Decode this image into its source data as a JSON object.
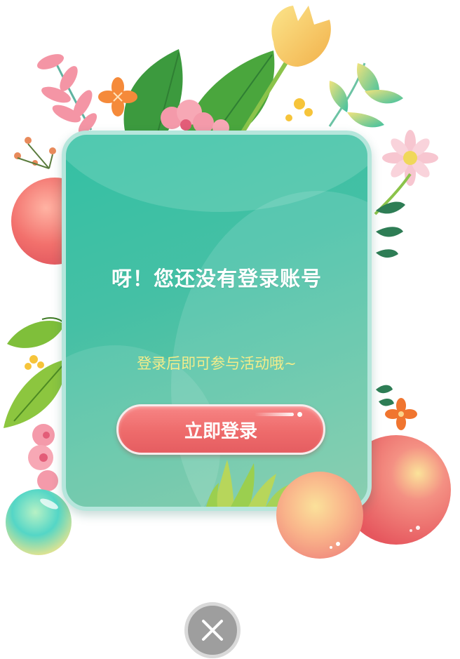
{
  "dialog": {
    "title": "呀！您还没有登录账号",
    "subtitle": "登录后即可参与活动哦~",
    "login_button_label": "立即登录"
  },
  "colors": {
    "card": "#45c0a5",
    "card_border": "#b6e6dc",
    "subtitle_text": "#f3ec8a",
    "button": "#ee6b6b",
    "close_button": "#9e9e9e"
  },
  "icons": {
    "close": "close-icon"
  }
}
